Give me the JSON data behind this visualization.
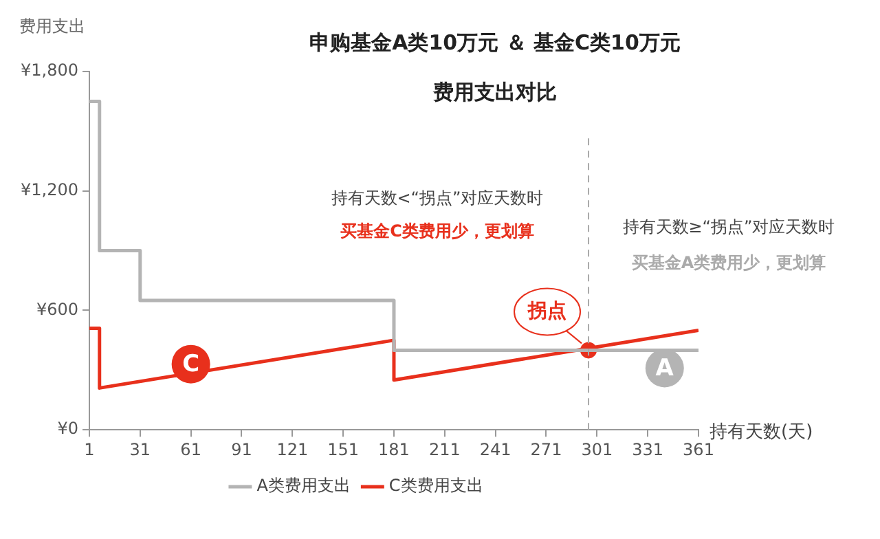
{
  "chart_data": {
    "type": "line",
    "title": "申购基金A类10万元 ＆ 基金C类10万元",
    "subtitle": "费用支出对比",
    "xlabel": "持有天数(天)",
    "ylabel": "费用支出",
    "xlim": [
      1,
      361
    ],
    "xticks": [
      1,
      31,
      61,
      91,
      121,
      151,
      181,
      211,
      241,
      271,
      301,
      331,
      361
    ],
    "ylim": [
      0,
      1800
    ],
    "yticks": [
      {
        "value": 0,
        "label": "¥0"
      },
      {
        "value": 600,
        "label": "¥600"
      },
      {
        "value": 1200,
        "label": "¥1,200"
      },
      {
        "value": 1800,
        "label": "¥1,800"
      }
    ],
    "series": [
      {
        "name": "A类费用支出",
        "color": "#b4b4b4",
        "x": [
          1,
          7,
          7,
          31,
          31,
          181,
          181,
          361
        ],
        "values": [
          1650,
          1650,
          900,
          900,
          650,
          650,
          400,
          400
        ]
      },
      {
        "name": "C类费用支出",
        "color": "#e8301c",
        "x": [
          1,
          7,
          7,
          181,
          181,
          361
        ],
        "values": [
          510,
          510,
          210,
          450,
          250,
          500
        ]
      },
      {
        "type": "scatter",
        "color": "#e8301c",
        "marker": "circle",
        "x": [
          296
        ],
        "values": [
          400
        ]
      }
    ],
    "ref_lines": [
      {
        "axis": "x",
        "value": 296,
        "color": "#aaaaaa",
        "line_style": "dashed"
      }
    ],
    "annotations": [
      "持有天数<“拐点”对应天数时",
      "买基金C类费用少，更划算",
      "持有天数≥“拐点”对应天数时",
      "买基金A类费用少，更划算",
      {
        "text": "拐点",
        "x": 296,
        "y": 400
      },
      {
        "text": "C",
        "x": 61,
        "y": 330
      },
      {
        "text": "A",
        "x": 341,
        "y": 310
      }
    ],
    "grid": false,
    "legend": "bottom",
    "line_style": "solid"
  }
}
